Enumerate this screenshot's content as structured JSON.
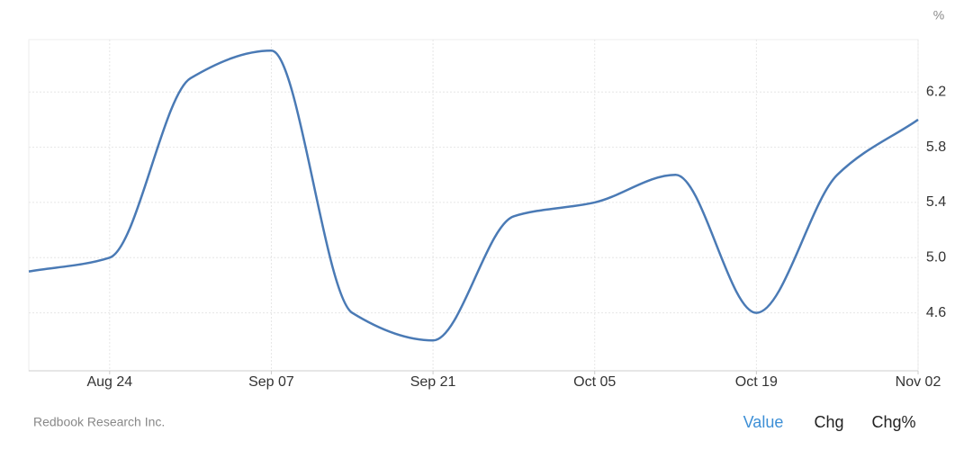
{
  "chart_data": {
    "type": "line",
    "categories": [
      null,
      "Aug 24",
      null,
      "Sep 07",
      null,
      "Sep 21",
      null,
      "Oct 05",
      null,
      "Oct 19",
      null,
      "Nov 02"
    ],
    "series": [
      {
        "color": "#4a7ab5",
        "values": [
          4.9,
          5.0,
          6.3,
          6.5,
          4.6,
          4.4,
          5.3,
          5.4,
          5.6,
          4.6,
          5.6,
          6.0
        ]
      }
    ],
    "ylim": [
      4.18,
      6.58
    ],
    "yticks": [
      4.6,
      {
        "value": 5,
        "label": "5.0"
      },
      5.4,
      5.8,
      6.2
    ],
    "y_unit": "%",
    "grid": true
  },
  "source": "Redbook Research Inc.",
  "tabs": [
    {
      "label": "Value",
      "active": true
    },
    {
      "label": "Chg",
      "active": false
    },
    {
      "label": "Chg%",
      "active": false
    }
  ]
}
